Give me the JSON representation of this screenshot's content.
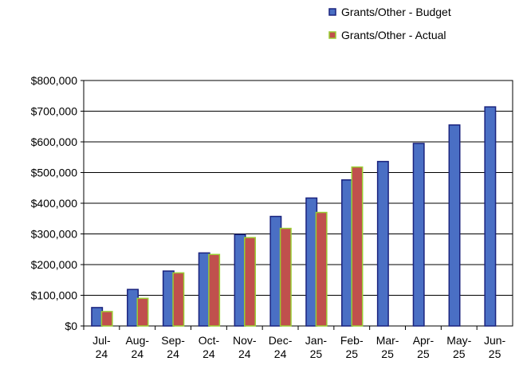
{
  "chart_data": {
    "type": "bar",
    "categories": [
      "Jul-24",
      "Aug-24",
      "Sep-24",
      "Oct-24",
      "Nov-24",
      "Dec-24",
      "Jan-25",
      "Feb-25",
      "Mar-25",
      "Apr-25",
      "May-25",
      "Jun-25"
    ],
    "series": [
      {
        "name": "Grants/Other - Budget",
        "color": "#4a6fc4",
        "border": "#1a237e",
        "values": [
          60000,
          119000,
          179000,
          238000,
          298000,
          357000,
          417000,
          476000,
          536000,
          595000,
          655000,
          714000
        ]
      },
      {
        "name": "Grants/Other - Actual",
        "color": "#c0504d",
        "border": "#9acd32",
        "values": [
          47000,
          90000,
          173000,
          233000,
          288000,
          318000,
          370000,
          518000,
          null,
          null,
          null,
          null
        ]
      }
    ],
    "ylim": [
      0,
      800000
    ],
    "yticks": [
      {
        "value": 0,
        "label": "$0"
      },
      {
        "value": 100000,
        "label": "$100,000"
      },
      {
        "value": 200000,
        "label": "$200,000"
      },
      {
        "value": 300000,
        "label": "$300,000"
      },
      {
        "value": 400000,
        "label": "$400,000"
      },
      {
        "value": 500000,
        "label": "$500,000"
      },
      {
        "value": 600000,
        "label": "$600,000"
      },
      {
        "value": 700000,
        "label": "$700,000"
      },
      {
        "value": 800000,
        "label": "$800,000"
      }
    ],
    "grid": true,
    "legend": "top-right"
  }
}
